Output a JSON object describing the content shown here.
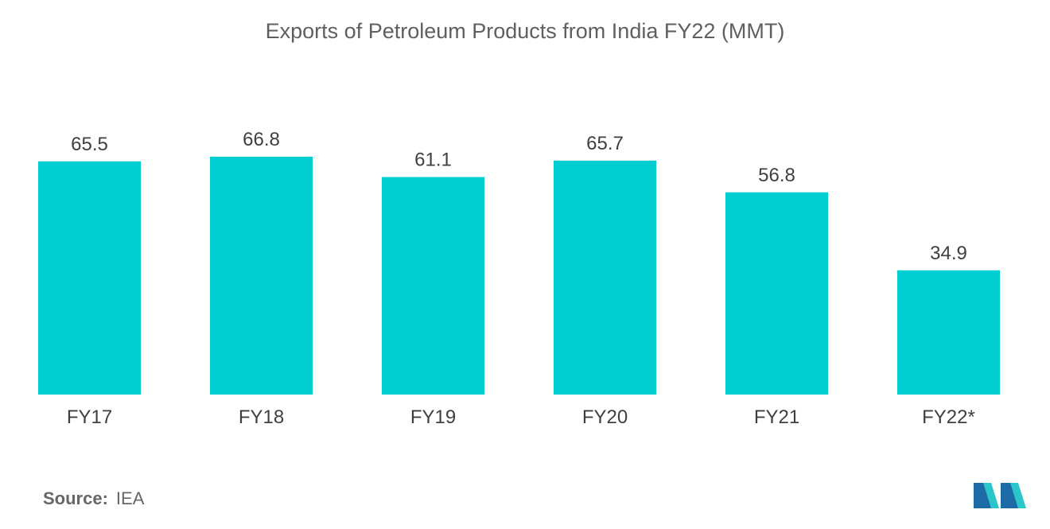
{
  "chart_data": {
    "type": "bar",
    "title": "Exports of Petroleum Products from India FY22 (MMT)",
    "categories": [
      "FY17",
      "FY18",
      "FY19",
      "FY20",
      "FY21",
      "FY22*"
    ],
    "values": [
      65.5,
      66.8,
      61.1,
      65.7,
      56.8,
      34.9
    ],
    "value_labels": [
      "65.5",
      "66.8",
      "61.1",
      "65.7",
      "56.8",
      "34.9"
    ],
    "xlabel": "",
    "ylabel": "",
    "ylim": [
      0,
      66.8
    ],
    "grid": false,
    "legend": "none",
    "bar_color": "#00CED1"
  },
  "source": {
    "label": "Source:",
    "value": "IEA"
  },
  "logo": {
    "icon": "mordor-logo-icon",
    "colors": [
      "#1D6BA6",
      "#2CC5C9"
    ]
  }
}
